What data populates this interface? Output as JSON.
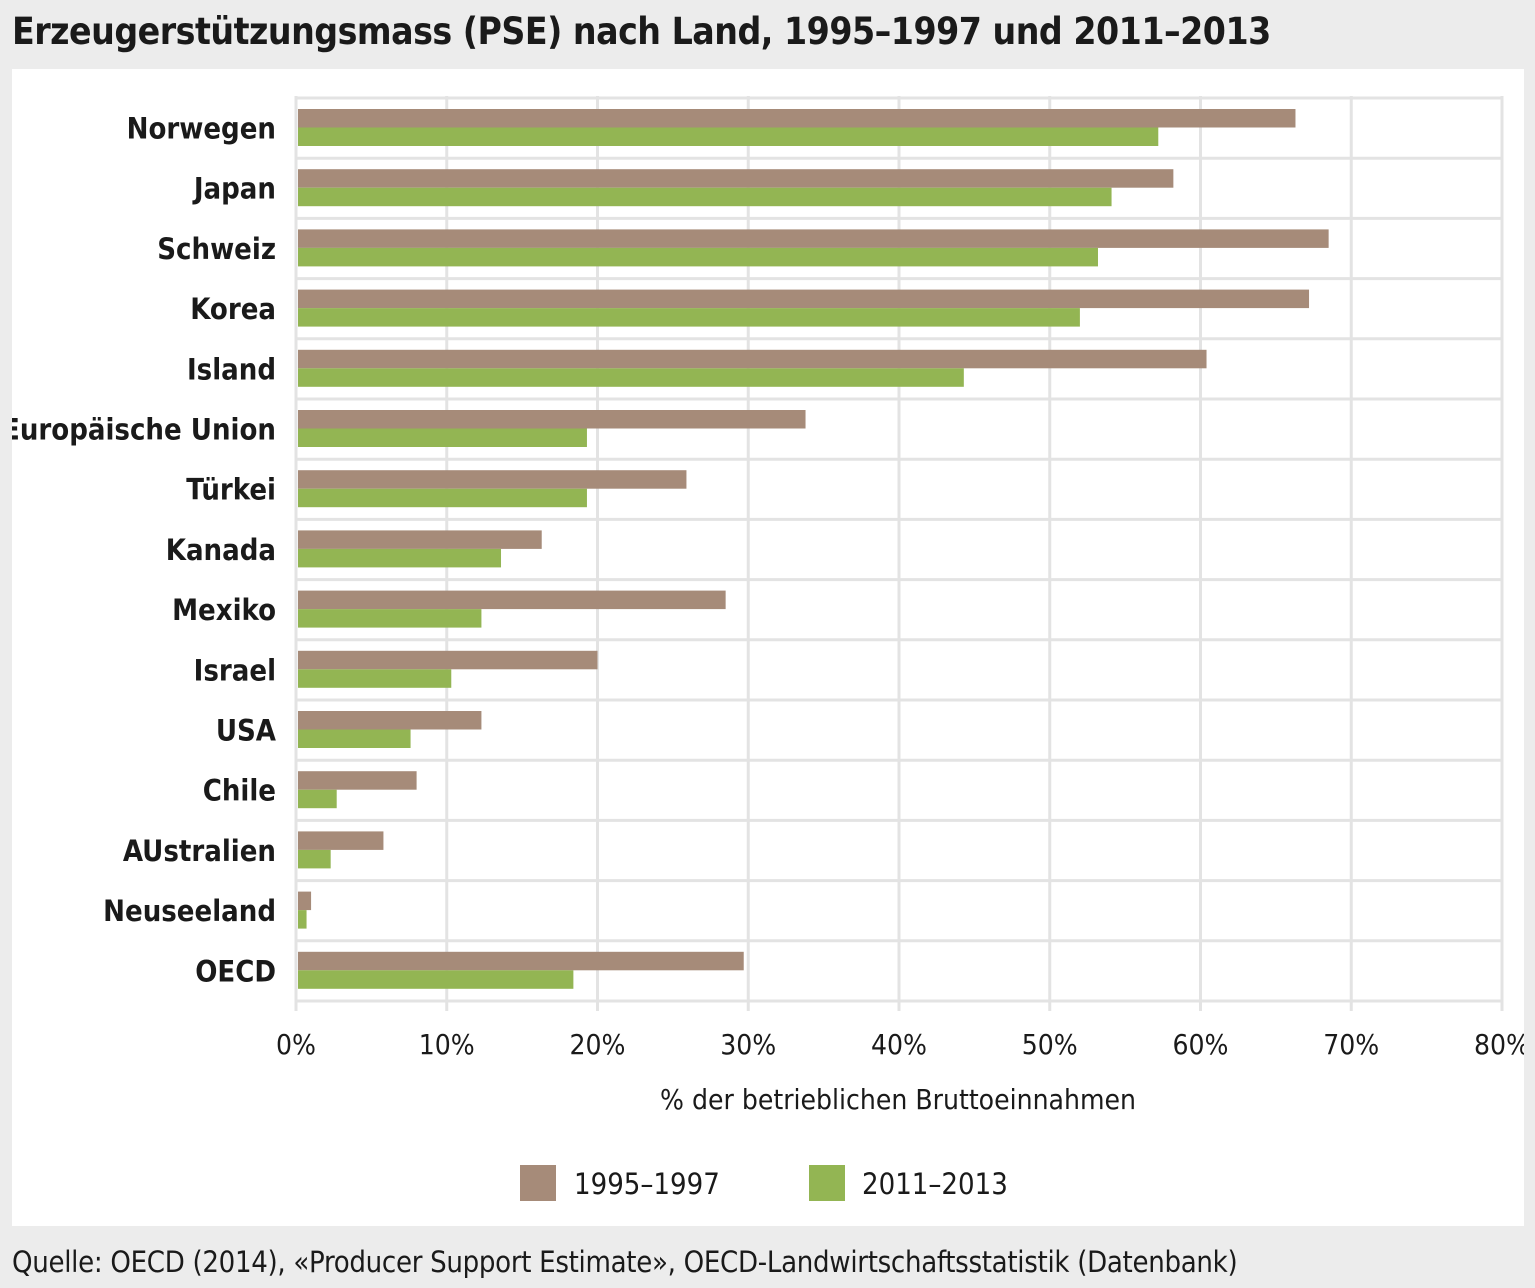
{
  "title": "Erzeugerstützungsmass (PSE) nach Land, 1995–1997 und 2011–2013",
  "source": "Quelle: OECD (2014), «Producer Support Estimate», OECD-Landwirtschaftsstatistik (Datenbank)",
  "colors": {
    "series_1995_1997": "#a68b79",
    "series_2011_2013": "#93b553",
    "gridline": "#e3e3e3"
  },
  "chart_data": {
    "type": "bar",
    "orientation": "horizontal",
    "title": "Erzeugerstützungsmass (PSE) nach Land, 1995–1997 und 2011–2013",
    "xlabel": "% der betrieblichen Bruttoeinnahmen",
    "ylabel": "",
    "xlim": [
      0,
      80
    ],
    "xticks": [
      "0%",
      "10%",
      "20%",
      "30%",
      "40%",
      "50%",
      "60%",
      "70%",
      "80%"
    ],
    "grid": true,
    "legend_position": "bottom-center",
    "categories": [
      "Norwegen",
      "Japan",
      "Schweiz",
      "Korea",
      "Island",
      "Europäische Union",
      "Türkei",
      "Kanada",
      "Mexiko",
      "Israel",
      "USA",
      "Chile",
      "AUstralien",
      "Neuseeland",
      "OECD"
    ],
    "series": [
      {
        "name": "1995–1997",
        "values": [
          66.3,
          58.2,
          68.5,
          67.2,
          60.4,
          33.8,
          25.9,
          16.3,
          28.5,
          20.0,
          12.3,
          8.0,
          5.8,
          1.0,
          29.7
        ]
      },
      {
        "name": "2011–2013",
        "values": [
          57.2,
          54.1,
          53.2,
          52.0,
          44.3,
          19.3,
          19.3,
          13.6,
          12.3,
          10.3,
          7.6,
          2.7,
          2.3,
          0.7,
          18.4
        ]
      }
    ]
  }
}
